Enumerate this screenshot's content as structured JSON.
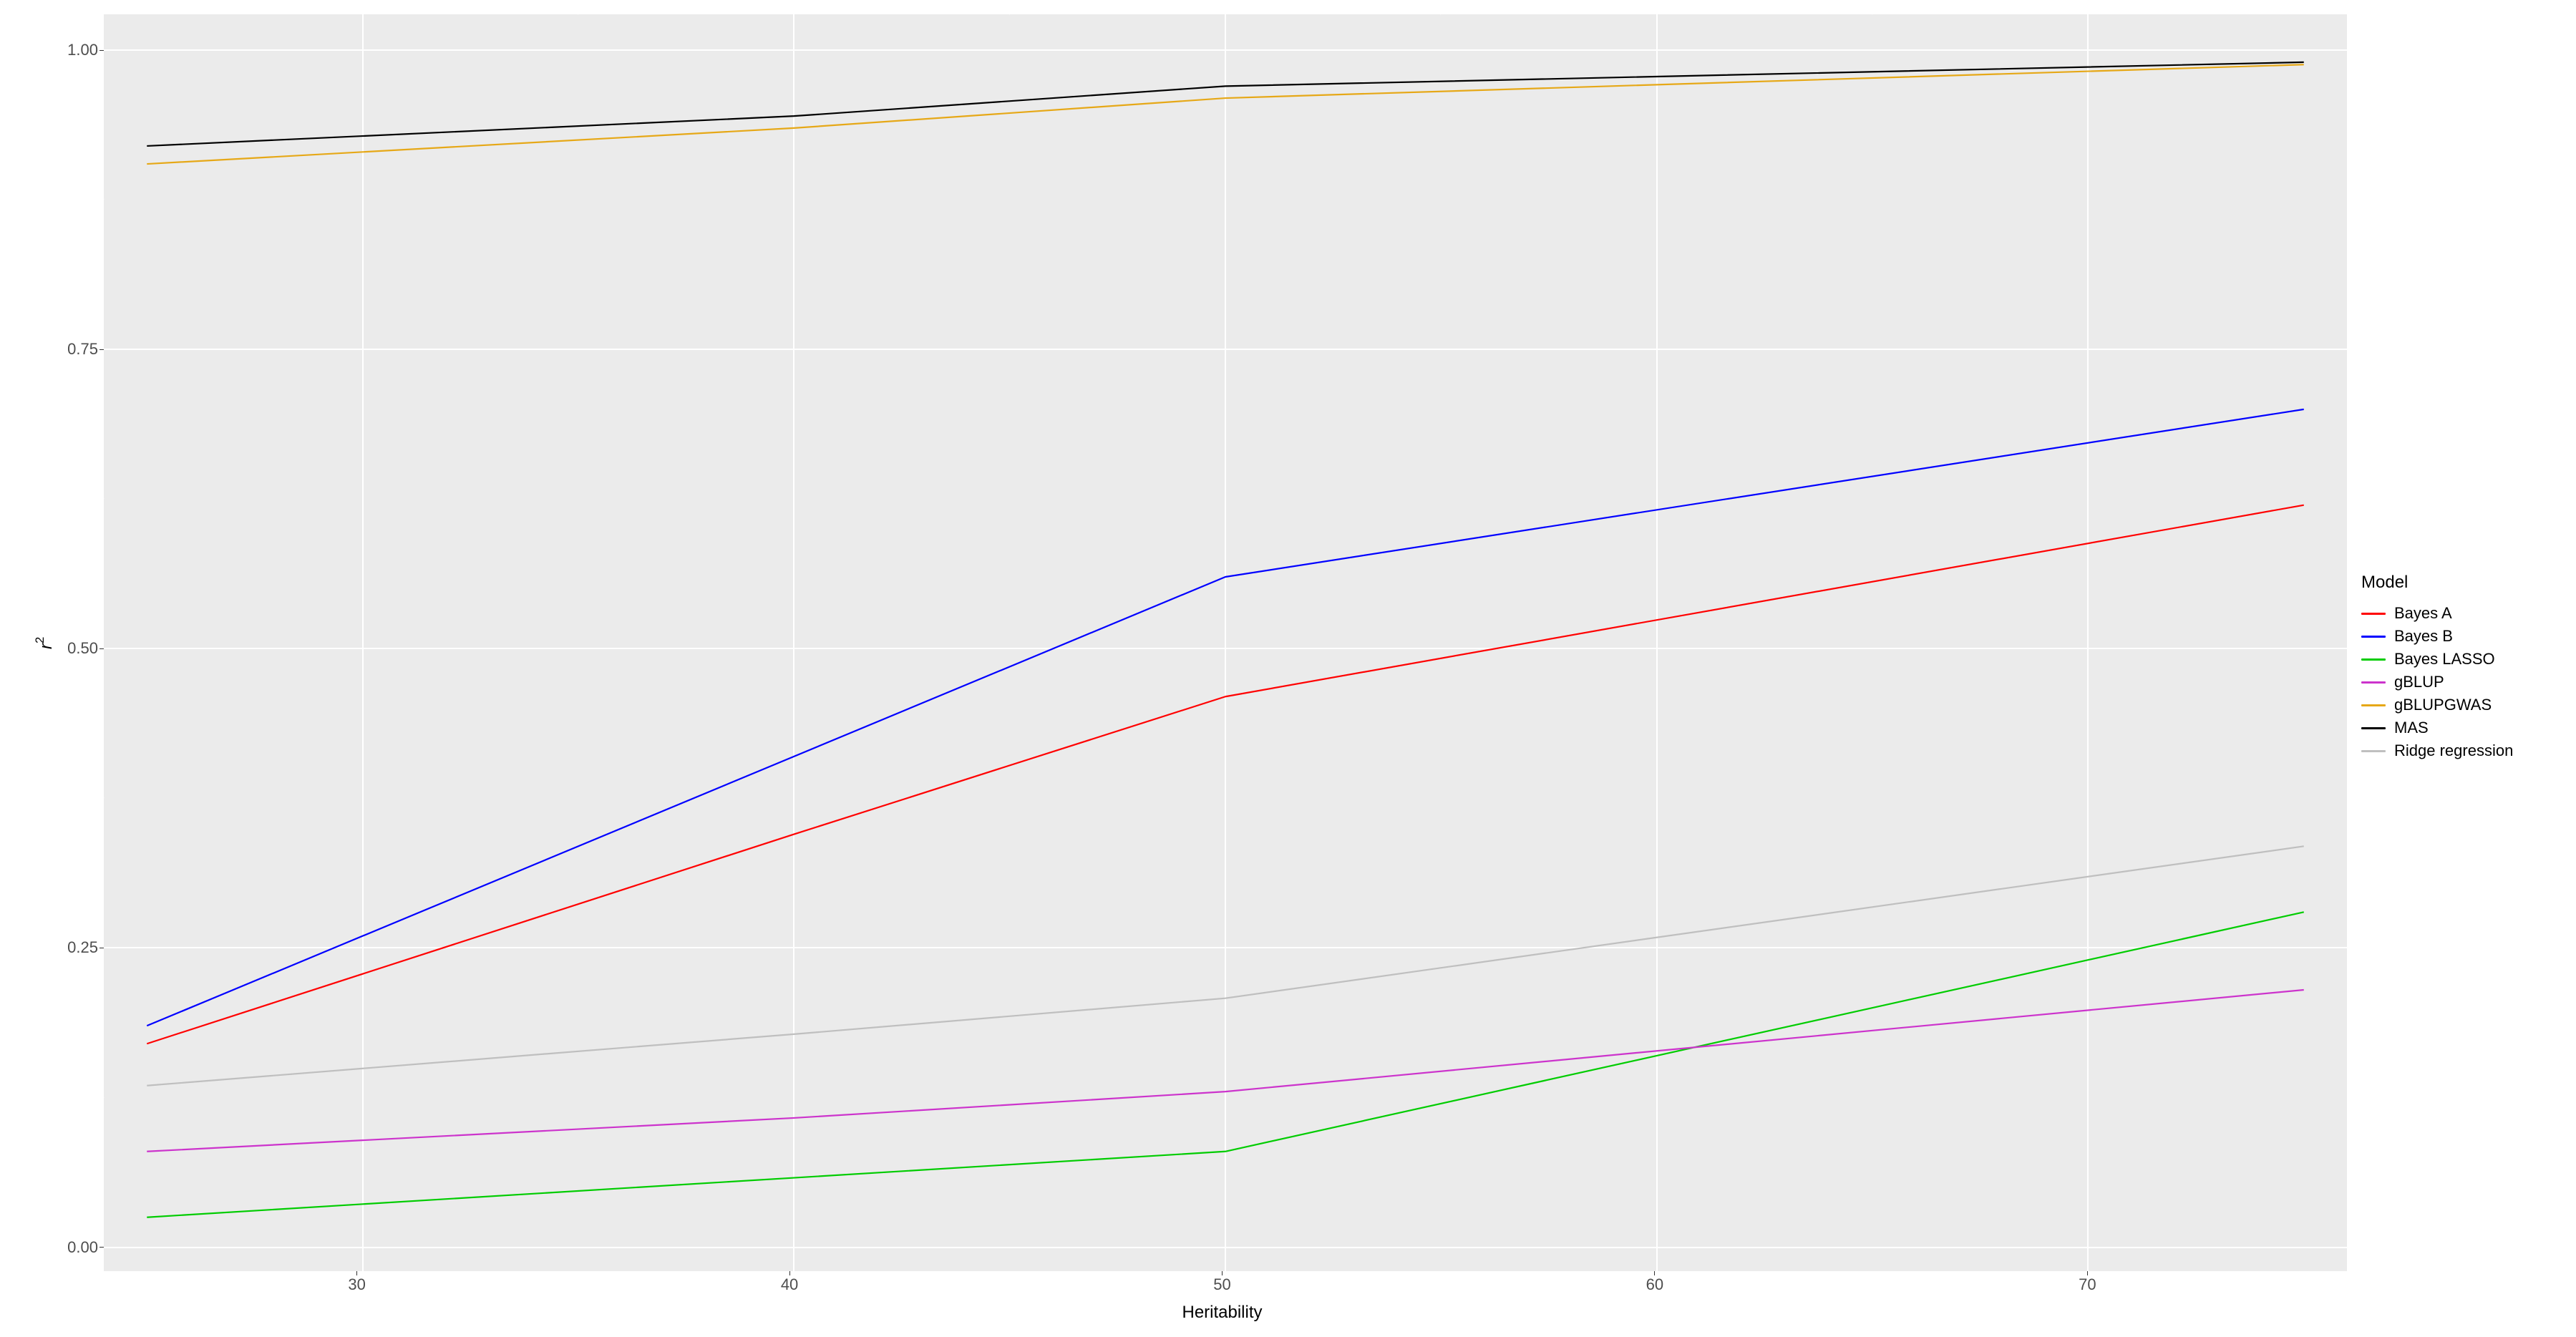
{
  "chart": {
    "type": "line",
    "background_color": "#ffffff",
    "panel_color": "#ebebeb",
    "grid_major_color": "#ffffff",
    "grid_minor_color": "#f5f5f5",
    "xlabel": "Heritability",
    "ylabel_main": "r",
    "ylabel_sup": "2",
    "label_fontsize": 24,
    "tick_fontsize": 22,
    "xlim": [
      24,
      76
    ],
    "ylim": [
      -0.02,
      1.03
    ],
    "xticks": [
      30,
      40,
      50,
      60,
      70
    ],
    "yticks": [
      0.0,
      0.25,
      0.5,
      0.75,
      1.0
    ],
    "ytick_labels": [
      "0.00",
      "0.25",
      "0.50",
      "0.75",
      "1.00"
    ],
    "x_values": [
      25,
      40,
      50,
      75
    ],
    "line_width": 2.2,
    "legend_title": "Model",
    "series": [
      {
        "name": "Bayes A",
        "color": "#ff0000",
        "y": [
          0.17,
          0.345,
          0.46,
          0.62
        ]
      },
      {
        "name": "Bayes B",
        "color": "#0000ff",
        "y": [
          0.185,
          0.41,
          0.56,
          0.7
        ]
      },
      {
        "name": "Bayes LASSO",
        "color": "#00cc00",
        "y": [
          0.025,
          0.058,
          0.08,
          0.28
        ]
      },
      {
        "name": "gBLUP",
        "color": "#cc33cc",
        "y": [
          0.08,
          0.108,
          0.13,
          0.215
        ]
      },
      {
        "name": "gBLUPGWAS",
        "color": "#e6a817",
        "y": [
          0.905,
          0.935,
          0.96,
          0.988
        ]
      },
      {
        "name": "MAS",
        "color": "#000000",
        "y": [
          0.92,
          0.945,
          0.97,
          0.99
        ]
      },
      {
        "name": "Ridge regression",
        "color": "#bfbfbf",
        "y": [
          0.135,
          0.178,
          0.208,
          0.335
        ]
      }
    ]
  }
}
